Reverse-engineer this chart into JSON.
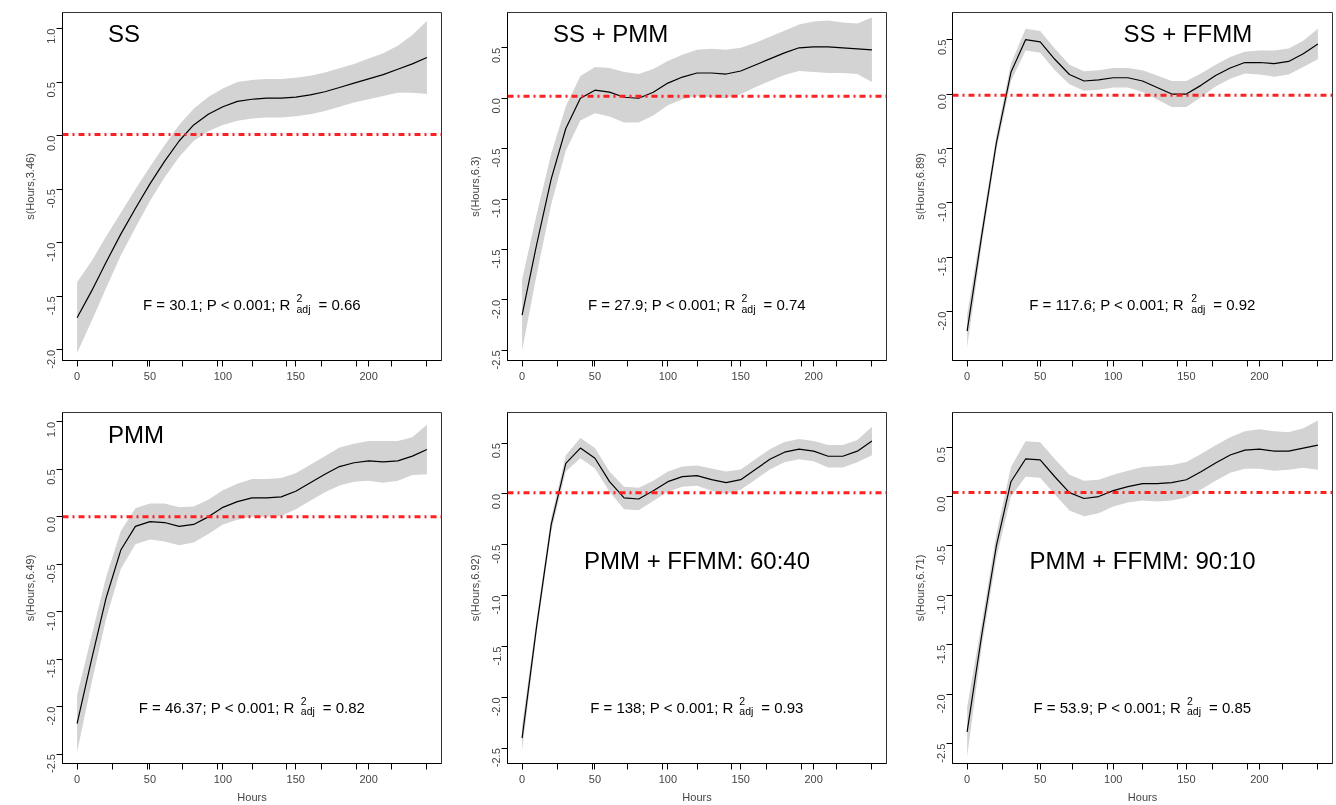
{
  "chart_data": [
    {
      "type": "line",
      "title": "SS",
      "ylabel": "s(Hours,3.46)",
      "annotations": [
        "F = 30.1; P < 0.001; R$^{2}$$_{adj}$ = 0.66"
      ],
      "xlim": [
        -10,
        250
      ],
      "ylim": [
        -2.1,
        1.15
      ],
      "xticks": [
        0,
        50,
        100,
        150,
        200,
        {
          "value": 24,
          "label": null
        },
        {
          "value": 48,
          "label": null
        },
        {
          "value": 72,
          "label": null
        },
        {
          "value": 96,
          "label": null
        },
        {
          "value": 120,
          "label": null
        },
        {
          "value": 144,
          "label": null
        },
        {
          "value": 168,
          "label": null
        },
        {
          "value": 192,
          "label": null
        },
        {
          "value": 216,
          "label": null
        },
        {
          "value": 240,
          "label": null
        }
      ],
      "yticks": [
        {
          "value": -2,
          "label": "-2.0"
        },
        -1.5,
        {
          "value": -1,
          "label": "-1.0"
        },
        -0.5,
        {
          "value": 0,
          "label": "0.0"
        },
        0.5,
        {
          "value": 1,
          "label": "1.0"
        }
      ],
      "grid": false,
      "line_style": "solid",
      "ref_lines": [
        {
          "axis": "y",
          "value": 0.01,
          "color": "#ff2020",
          "line_style": "dashdot"
        }
      ],
      "x": [
        0,
        10,
        20,
        30,
        40,
        50,
        60,
        70,
        80,
        90,
        100,
        110,
        120,
        130,
        140,
        150,
        160,
        170,
        180,
        190,
        200,
        210,
        220,
        230,
        240
      ],
      "series": [
        {
          "color": "#000000",
          "values": [
            -1.7,
            -1.45,
            -1.18,
            -0.92,
            -0.68,
            -0.45,
            -0.24,
            -0.05,
            0.1,
            0.2,
            0.27,
            0.32,
            0.34,
            0.35,
            0.35,
            0.36,
            0.38,
            0.41,
            0.45,
            0.49,
            0.53,
            0.57,
            0.62,
            0.67,
            0.73
          ],
          "lower": [
            -2.03,
            -1.73,
            -1.42,
            -1.12,
            -0.86,
            -0.61,
            -0.39,
            -0.2,
            -0.05,
            0.04,
            0.1,
            0.14,
            0.16,
            0.17,
            0.17,
            0.18,
            0.2,
            0.23,
            0.27,
            0.31,
            0.34,
            0.37,
            0.4,
            0.4,
            0.39
          ],
          "upper": [
            -1.37,
            -1.17,
            -0.94,
            -0.72,
            -0.5,
            -0.29,
            -0.09,
            0.1,
            0.25,
            0.36,
            0.44,
            0.5,
            0.52,
            0.53,
            0.53,
            0.54,
            0.56,
            0.59,
            0.63,
            0.67,
            0.72,
            0.77,
            0.84,
            0.94,
            1.07
          ]
        }
      ]
    },
    {
      "type": "line",
      "title": "SS + PMM",
      "ylabel": "s(Hours,6.3)",
      "annotations": [
        "F = 27.9; P < 0.001; R$^{2}$$_{adj}$ = 0.74"
      ],
      "xlim": [
        -10,
        250
      ],
      "ylim": [
        -2.6,
        0.85
      ],
      "xticks": [
        0,
        50,
        100,
        150,
        200,
        {
          "value": 24,
          "label": null
        },
        {
          "value": 48,
          "label": null
        },
        {
          "value": 72,
          "label": null
        },
        {
          "value": 96,
          "label": null
        },
        {
          "value": 120,
          "label": null
        },
        {
          "value": 144,
          "label": null
        },
        {
          "value": 168,
          "label": null
        },
        {
          "value": 192,
          "label": null
        },
        {
          "value": 216,
          "label": null
        },
        {
          "value": 240,
          "label": null
        }
      ],
      "yticks": [
        -2.5,
        {
          "value": -2,
          "label": "-2.0"
        },
        -1.5,
        {
          "value": -1,
          "label": "-1.0"
        },
        -0.5,
        {
          "value": 0,
          "label": "0.0"
        },
        0.5
      ],
      "grid": false,
      "line_style": "solid",
      "ref_lines": [
        {
          "axis": "y",
          "value": 0.02,
          "color": "#ff2020",
          "line_style": "dashdot"
        }
      ],
      "x": [
        0,
        10,
        20,
        30,
        40,
        50,
        60,
        70,
        80,
        90,
        100,
        110,
        120,
        130,
        140,
        150,
        160,
        170,
        180,
        190,
        200,
        210,
        220,
        230,
        240
      ],
      "series": [
        {
          "color": "#000000",
          "values": [
            -2.15,
            -1.45,
            -0.8,
            -0.3,
            0.0,
            0.08,
            0.06,
            0.01,
            0.0,
            0.06,
            0.15,
            0.21,
            0.25,
            0.25,
            0.24,
            0.27,
            0.33,
            0.39,
            0.45,
            0.5,
            0.51,
            0.51,
            0.5,
            0.49,
            0.48
          ],
          "lower": [
            -2.5,
            -1.75,
            -1.05,
            -0.52,
            -0.22,
            -0.15,
            -0.18,
            -0.24,
            -0.24,
            -0.17,
            -0.07,
            -0.01,
            0.02,
            0.01,
            0.0,
            0.04,
            0.11,
            0.17,
            0.23,
            0.27,
            0.26,
            0.25,
            0.25,
            0.24,
            0.16
          ],
          "upper": [
            -1.8,
            -1.15,
            -0.55,
            -0.08,
            0.22,
            0.31,
            0.3,
            0.26,
            0.24,
            0.29,
            0.37,
            0.43,
            0.48,
            0.49,
            0.48,
            0.5,
            0.55,
            0.61,
            0.67,
            0.73,
            0.76,
            0.77,
            0.75,
            0.74,
            0.8
          ]
        }
      ]
    },
    {
      "type": "line",
      "title": "SS + FFMM",
      "ylabel": "s(Hours,6.89)",
      "annotations": [
        "F = 117.6; P < 0.001; R$^{2}$$_{adj}$ = 0.92"
      ],
      "xlim": [
        -10,
        250
      ],
      "ylim": [
        -2.45,
        0.75
      ],
      "xticks": [
        0,
        50,
        100,
        150,
        200,
        {
          "value": 24,
          "label": null
        },
        {
          "value": 48,
          "label": null
        },
        {
          "value": 72,
          "label": null
        },
        {
          "value": 96,
          "label": null
        },
        {
          "value": 120,
          "label": null
        },
        {
          "value": 144,
          "label": null
        },
        {
          "value": 168,
          "label": null
        },
        {
          "value": 192,
          "label": null
        },
        {
          "value": 216,
          "label": null
        },
        {
          "value": 240,
          "label": null
        }
      ],
      "yticks": [
        {
          "value": -2,
          "label": "-2.0"
        },
        -1.5,
        {
          "value": -1,
          "label": "-1.0"
        },
        -0.5,
        {
          "value": 0,
          "label": "0.0"
        },
        0.5
      ],
      "grid": false,
      "line_style": "solid",
      "ref_lines": [
        {
          "axis": "y",
          "value": -0.01,
          "color": "#ff2020",
          "line_style": "dashdot"
        }
      ],
      "x": [
        0,
        10,
        20,
        30,
        40,
        50,
        60,
        70,
        80,
        90,
        100,
        110,
        120,
        130,
        140,
        150,
        160,
        170,
        180,
        190,
        200,
        210,
        220,
        230,
        240
      ],
      "series": [
        {
          "color": "#000000",
          "values": [
            -2.18,
            -1.3,
            -0.45,
            0.2,
            0.5,
            0.48,
            0.32,
            0.18,
            0.12,
            0.13,
            0.15,
            0.15,
            0.12,
            0.06,
            0.0,
            0.0,
            0.08,
            0.17,
            0.24,
            0.29,
            0.29,
            0.28,
            0.3,
            0.37,
            0.46
          ],
          "lower": [
            -2.33,
            -1.38,
            -0.52,
            0.12,
            0.4,
            0.38,
            0.22,
            0.09,
            0.03,
            0.04,
            0.06,
            0.06,
            0.02,
            -0.05,
            -0.12,
            -0.12,
            -0.03,
            0.07,
            0.14,
            0.19,
            0.18,
            0.16,
            0.18,
            0.25,
            0.32
          ],
          "upper": [
            -2.03,
            -1.22,
            -0.38,
            0.28,
            0.6,
            0.58,
            0.42,
            0.27,
            0.21,
            0.22,
            0.24,
            0.24,
            0.22,
            0.17,
            0.12,
            0.12,
            0.19,
            0.27,
            0.34,
            0.39,
            0.4,
            0.4,
            0.42,
            0.49,
            0.6
          ]
        }
      ]
    },
    {
      "type": "line",
      "title": "PMM",
      "xlabel": "Hours",
      "ylabel": "s(Hours,6.49)",
      "annotations": [
        "F = 46.37; P < 0.001; R$^{2}$$_{adj}$ = 0.82"
      ],
      "xlim": [
        -10,
        250
      ],
      "ylim": [
        -2.6,
        1.1
      ],
      "xticks": [
        0,
        50,
        100,
        150,
        200,
        {
          "value": 24,
          "label": null
        },
        {
          "value": 48,
          "label": null
        },
        {
          "value": 72,
          "label": null
        },
        {
          "value": 96,
          "label": null
        },
        {
          "value": 120,
          "label": null
        },
        {
          "value": 144,
          "label": null
        },
        {
          "value": 168,
          "label": null
        },
        {
          "value": 192,
          "label": null
        },
        {
          "value": 216,
          "label": null
        },
        {
          "value": 240,
          "label": null
        }
      ],
      "yticks": [
        -2.5,
        {
          "value": -2,
          "label": "-2.0"
        },
        -1.5,
        {
          "value": -1,
          "label": "-1.0"
        },
        -0.5,
        {
          "value": 0,
          "label": "0.0"
        },
        0.5,
        {
          "value": 1,
          "label": "1.0"
        }
      ],
      "grid": false,
      "line_style": "solid",
      "ref_lines": [
        {
          "axis": "y",
          "value": 0.0,
          "color": "#ff2020",
          "line_style": "dashdot"
        }
      ],
      "x": [
        0,
        10,
        20,
        30,
        40,
        50,
        60,
        70,
        80,
        90,
        100,
        110,
        120,
        130,
        140,
        150,
        160,
        170,
        180,
        190,
        200,
        210,
        220,
        230,
        240
      ],
      "series": [
        {
          "color": "#000000",
          "values": [
            -2.18,
            -1.5,
            -0.85,
            -0.35,
            -0.1,
            -0.05,
            -0.06,
            -0.1,
            -0.08,
            0.0,
            0.1,
            0.16,
            0.2,
            0.2,
            0.21,
            0.27,
            0.36,
            0.45,
            0.53,
            0.57,
            0.59,
            0.58,
            0.59,
            0.64,
            0.71
          ],
          "lower": [
            -2.48,
            -1.75,
            -1.07,
            -0.55,
            -0.29,
            -0.24,
            -0.26,
            -0.3,
            -0.27,
            -0.18,
            -0.08,
            -0.03,
            0.0,
            0.0,
            0.01,
            0.08,
            0.17,
            0.26,
            0.33,
            0.37,
            0.38,
            0.36,
            0.38,
            0.44,
            0.45
          ],
          "upper": [
            -1.88,
            -1.25,
            -0.63,
            -0.15,
            0.09,
            0.14,
            0.14,
            0.1,
            0.11,
            0.18,
            0.28,
            0.35,
            0.4,
            0.4,
            0.41,
            0.46,
            0.55,
            0.64,
            0.73,
            0.77,
            0.8,
            0.8,
            0.8,
            0.84,
            0.97
          ]
        }
      ]
    },
    {
      "type": "line",
      "title": "PMM + FFMM: 60:40",
      "xlabel": "Hours",
      "ylabel": "s(Hours,6.92)",
      "annotations": [
        "F = 138; P < 0.001; R$^{2}$$_{adj}$ = 0.93"
      ],
      "xlim": [
        -10,
        250
      ],
      "ylim": [
        -2.65,
        0.8
      ],
      "xticks": [
        0,
        50,
        100,
        150,
        200,
        {
          "value": 24,
          "label": null
        },
        {
          "value": 48,
          "label": null
        },
        {
          "value": 72,
          "label": null
        },
        {
          "value": 96,
          "label": null
        },
        {
          "value": 120,
          "label": null
        },
        {
          "value": 144,
          "label": null
        },
        {
          "value": 168,
          "label": null
        },
        {
          "value": 192,
          "label": null
        },
        {
          "value": 216,
          "label": null
        },
        {
          "value": 240,
          "label": null
        }
      ],
      "yticks": [
        -2.5,
        {
          "value": -2,
          "label": "-2.0"
        },
        -1.5,
        {
          "value": -1,
          "label": "-1.0"
        },
        -0.5,
        {
          "value": 0,
          "label": "0.0"
        },
        0.5
      ],
      "grid": false,
      "line_style": "solid",
      "ref_lines": [
        {
          "axis": "y",
          "value": 0.01,
          "color": "#ff2020",
          "line_style": "dashdot"
        }
      ],
      "x": [
        0,
        10,
        20,
        30,
        40,
        50,
        60,
        70,
        80,
        90,
        100,
        110,
        120,
        130,
        140,
        150,
        160,
        170,
        180,
        190,
        200,
        210,
        220,
        230,
        240
      ],
      "series": [
        {
          "color": "#000000",
          "values": [
            -2.4,
            -1.3,
            -0.3,
            0.3,
            0.45,
            0.35,
            0.12,
            -0.04,
            -0.05,
            0.03,
            0.12,
            0.17,
            0.18,
            0.14,
            0.11,
            0.14,
            0.24,
            0.34,
            0.41,
            0.44,
            0.42,
            0.37,
            0.37,
            0.42,
            0.52
          ],
          "lower": [
            -2.52,
            -1.37,
            -0.37,
            0.22,
            0.35,
            0.25,
            0.02,
            -0.15,
            -0.16,
            -0.07,
            0.02,
            0.07,
            0.08,
            0.03,
            0.0,
            0.04,
            0.14,
            0.24,
            0.31,
            0.34,
            0.32,
            0.26,
            0.26,
            0.31,
            0.38
          ],
          "upper": [
            -2.28,
            -1.23,
            -0.23,
            0.38,
            0.55,
            0.45,
            0.22,
            0.07,
            0.06,
            0.13,
            0.22,
            0.27,
            0.28,
            0.25,
            0.22,
            0.24,
            0.34,
            0.44,
            0.51,
            0.54,
            0.52,
            0.48,
            0.48,
            0.53,
            0.66
          ]
        }
      ]
    },
    {
      "type": "line",
      "title": "PMM + FFMM: 90:10",
      "xlabel": "Hours",
      "ylabel": "s(Hours,6.71)",
      "annotations": [
        "F = 53.9; P < 0.001; R$^{2}$$_{adj}$ = 0.85"
      ],
      "xlim": [
        -10,
        250
      ],
      "ylim": [
        -2.7,
        0.85
      ],
      "xticks": [
        0,
        50,
        100,
        150,
        200,
        {
          "value": 24,
          "label": null
        },
        {
          "value": 48,
          "label": null
        },
        {
          "value": 72,
          "label": null
        },
        {
          "value": 96,
          "label": null
        },
        {
          "value": 120,
          "label": null
        },
        {
          "value": 144,
          "label": null
        },
        {
          "value": 168,
          "label": null
        },
        {
          "value": 192,
          "label": null
        },
        {
          "value": 216,
          "label": null
        },
        {
          "value": 240,
          "label": null
        }
      ],
      "yticks": [
        -2.5,
        {
          "value": -2,
          "label": "-2.0"
        },
        -1.5,
        {
          "value": -1,
          "label": "-1.0"
        },
        -0.5,
        {
          "value": 0,
          "label": "0.0"
        },
        0.5
      ],
      "grid": false,
      "line_style": "solid",
      "ref_lines": [
        {
          "axis": "y",
          "value": 0.04,
          "color": "#ff2020",
          "line_style": "dashdot"
        }
      ],
      "x": [
        0,
        10,
        20,
        30,
        40,
        50,
        60,
        70,
        80,
        90,
        100,
        110,
        120,
        130,
        140,
        150,
        160,
        170,
        180,
        190,
        200,
        210,
        220,
        230,
        240
      ],
      "series": [
        {
          "color": "#000000",
          "values": [
            -2.38,
            -1.4,
            -0.5,
            0.15,
            0.38,
            0.37,
            0.2,
            0.04,
            -0.02,
            0.0,
            0.06,
            0.1,
            0.13,
            0.13,
            0.14,
            0.17,
            0.25,
            0.34,
            0.42,
            0.47,
            0.48,
            0.46,
            0.46,
            0.49,
            0.52
          ],
          "lower": [
            -2.63,
            -1.52,
            -0.62,
            0.0,
            0.2,
            0.19,
            0.02,
            -0.14,
            -0.2,
            -0.17,
            -0.1,
            -0.06,
            -0.04,
            -0.05,
            -0.04,
            -0.01,
            0.07,
            0.16,
            0.24,
            0.28,
            0.28,
            0.26,
            0.27,
            0.29,
            0.27
          ],
          "upper": [
            -2.13,
            -1.28,
            -0.38,
            0.3,
            0.56,
            0.55,
            0.38,
            0.22,
            0.16,
            0.17,
            0.22,
            0.26,
            0.3,
            0.31,
            0.32,
            0.35,
            0.43,
            0.52,
            0.6,
            0.66,
            0.68,
            0.66,
            0.65,
            0.69,
            0.77
          ]
        }
      ]
    }
  ]
}
